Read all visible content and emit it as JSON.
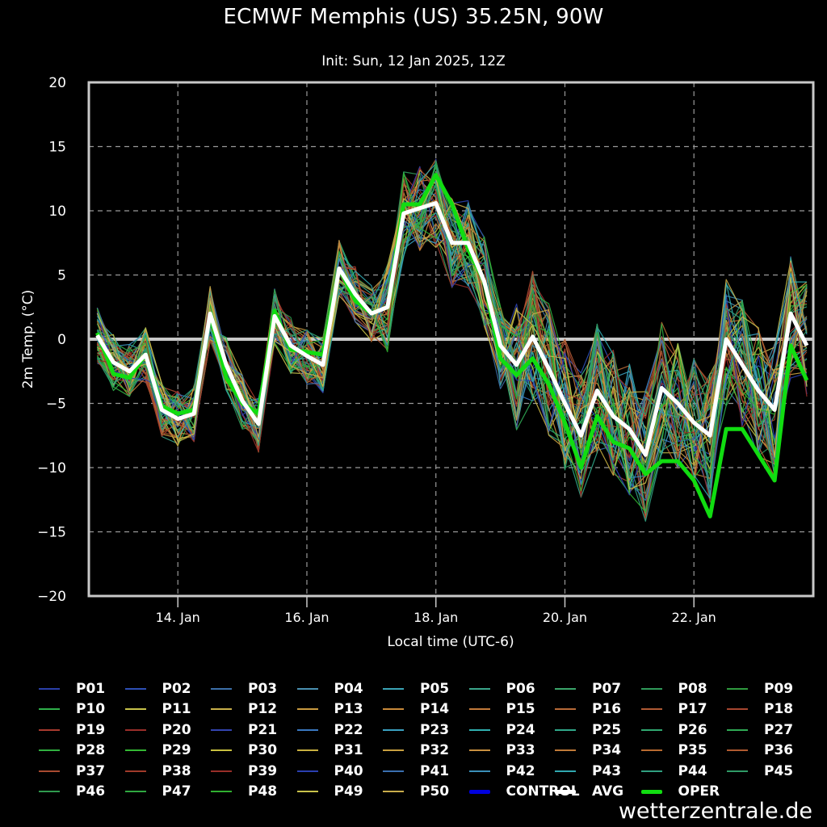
{
  "header": {
    "title": "ECMWF Memphis (US) 35.25N, 90W",
    "subtitle": "Init: Sun, 12 Jan 2025, 12Z"
  },
  "watermark": "wetterzentrale.de",
  "chart_data": {
    "type": "line",
    "title": "ECMWF Memphis (US) 35.25N, 90W",
    "subtitle": "Init: Sun, 12 Jan 2025, 12Z",
    "xlabel": "Local time (UTC-6)",
    "ylabel": "2m Temp. (°C)",
    "ylim": [
      -20,
      20
    ],
    "yticks": [
      20,
      15,
      10,
      5,
      0,
      -5,
      -10,
      -15,
      -20
    ],
    "xticks": [
      "14. Jan",
      "16. Jan",
      "18. Jan",
      "20. Jan",
      "22. Jan"
    ],
    "x_start": "12 Jan 18:00",
    "x_step_hours": 6,
    "x_range_days": [
      12.62,
      23.85
    ],
    "xtick_days": [
      14,
      16,
      18,
      20,
      22
    ],
    "first_point_day": 12.75,
    "grid": true,
    "zero_line": true,
    "legend_position": "bottom",
    "series": [
      {
        "name": "AVG",
        "color": "#ffffff",
        "bold": true,
        "values": [
          0.3,
          -1.8,
          -2.5,
          -1.2,
          -5.5,
          -6.2,
          -5.8,
          2.0,
          -2.0,
          -4.8,
          -6.6,
          1.8,
          -0.5,
          -1.3,
          -2.0,
          5.5,
          3.5,
          2.0,
          2.5,
          9.8,
          10.2,
          10.6,
          7.5,
          7.5,
          4.5,
          -0.5,
          -2.0,
          0.2,
          -2.3,
          -5.0,
          -7.5,
          -4.0,
          -6.0,
          -7.0,
          -9.0,
          -3.8,
          -5.0,
          -6.5,
          -7.5,
          0.0,
          -2.0,
          -4.0,
          -5.5,
          2.0,
          -0.5
        ]
      },
      {
        "name": "OPER",
        "color": "#11dd11",
        "bold": true,
        "values": [
          0.5,
          -2.7,
          -3.0,
          -1.2,
          -5.2,
          -5.8,
          -5.5,
          2.0,
          -3.0,
          -5.0,
          -5.8,
          2.2,
          -0.8,
          -1.0,
          -1.2,
          5.5,
          3.0,
          2.0,
          2.5,
          10.5,
          10.5,
          12.8,
          10.5,
          7.0,
          4.5,
          -1.5,
          -2.8,
          -1.5,
          -3.5,
          -6.5,
          -10.0,
          -6.0,
          -8.0,
          -8.5,
          -10.5,
          -9.5,
          -9.5,
          -11.0,
          -13.8,
          -7.0,
          -7.0,
          -9.0,
          -11.0,
          -0.5,
          -3.2
        ]
      },
      {
        "name": "CONTROL",
        "color": "#0000dd",
        "bold": true,
        "values": []
      }
    ],
    "ensemble_spread_note": "50 perturbed members P01–P50 spread roughly ±5 °C around AVG, widening after 19 Jan (range about -17 to +17.5 °C)",
    "legend": [
      {
        "label": "P01",
        "color": "#2a3fa8"
      },
      {
        "label": "P02",
        "color": "#2d4fb5"
      },
      {
        "label": "P03",
        "color": "#3c6fa8"
      },
      {
        "label": "P04",
        "color": "#4a8fb0"
      },
      {
        "label": "P05",
        "color": "#3aa3b5"
      },
      {
        "label": "P06",
        "color": "#3aa58a"
      },
      {
        "label": "P07",
        "color": "#3aa56a"
      },
      {
        "label": "P08",
        "color": "#2f9a5a"
      },
      {
        "label": "P09",
        "color": "#2e9a3e"
      },
      {
        "label": "P10",
        "color": "#2fb04a"
      },
      {
        "label": "P11",
        "color": "#c8c24a"
      },
      {
        "label": "P12",
        "color": "#c9b04a"
      },
      {
        "label": "P13",
        "color": "#c99a40"
      },
      {
        "label": "P14",
        "color": "#c98a3a"
      },
      {
        "label": "P15",
        "color": "#c27a3a"
      },
      {
        "label": "P16",
        "color": "#b86a38"
      },
      {
        "label": "P17",
        "color": "#b05a34"
      },
      {
        "label": "P18",
        "color": "#a84630"
      },
      {
        "label": "P19",
        "color": "#a83a2e"
      },
      {
        "label": "P20",
        "color": "#9a2e2a"
      },
      {
        "label": "P21",
        "color": "#3344b0"
      },
      {
        "label": "P22",
        "color": "#3a78c0"
      },
      {
        "label": "P23",
        "color": "#3aa0c0"
      },
      {
        "label": "P24",
        "color": "#30b0b0"
      },
      {
        "label": "P25",
        "color": "#30a88a"
      },
      {
        "label": "P26",
        "color": "#30a870"
      },
      {
        "label": "P27",
        "color": "#2faa55"
      },
      {
        "label": "P28",
        "color": "#30b040"
      },
      {
        "label": "P29",
        "color": "#34b834"
      },
      {
        "label": "P30",
        "color": "#c8c040"
      },
      {
        "label": "P31",
        "color": "#c8b040"
      },
      {
        "label": "P32",
        "color": "#c8a040"
      },
      {
        "label": "P33",
        "color": "#c89040"
      },
      {
        "label": "P34",
        "color": "#c07a38"
      },
      {
        "label": "P35",
        "color": "#b86a30"
      },
      {
        "label": "P36",
        "color": "#b05a30"
      },
      {
        "label": "P37",
        "color": "#a84a30"
      },
      {
        "label": "P38",
        "color": "#a03a2a"
      },
      {
        "label": "P39",
        "color": "#982e28"
      },
      {
        "label": "P40",
        "color": "#2a3fb0"
      },
      {
        "label": "P41",
        "color": "#3a6fb0"
      },
      {
        "label": "P42",
        "color": "#3a8fb8"
      },
      {
        "label": "P43",
        "color": "#30a8b0"
      },
      {
        "label": "P44",
        "color": "#30a080"
      },
      {
        "label": "P45",
        "color": "#2f9a66"
      },
      {
        "label": "P46",
        "color": "#2f9a4e"
      },
      {
        "label": "P47",
        "color": "#2fa840"
      },
      {
        "label": "P48",
        "color": "#30b030"
      },
      {
        "label": "P49",
        "color": "#c8c24a"
      },
      {
        "label": "P50",
        "color": "#c8ac4a"
      },
      {
        "label": "CONTROL",
        "color": "#0000dd",
        "bold": true
      },
      {
        "label": "AVG",
        "color": "#ffffff",
        "bold": true
      },
      {
        "label": "OPER",
        "color": "#11dd11",
        "bold": true
      }
    ]
  }
}
